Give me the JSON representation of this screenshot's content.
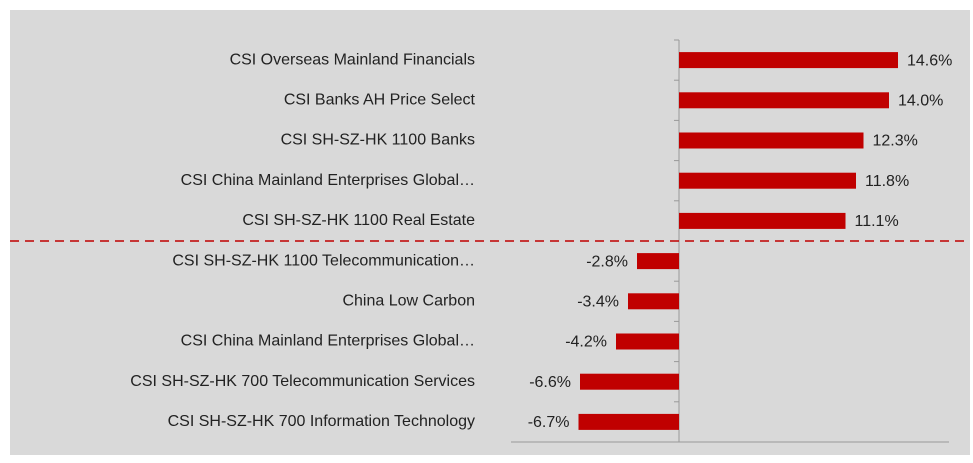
{
  "chart_data": {
    "type": "barh",
    "categories": [
      "CSI Overseas Mainland Financials",
      "CSI Banks AH Price Select",
      "CSI SH-SZ-HK 1100 Banks",
      "CSI China Mainland Enterprises Global…",
      "CSI SH-SZ-HK 1100 Real Estate",
      "CSI SH-SZ-HK 1100 Telecommunication…",
      "China Low Carbon",
      "CSI China Mainland Enterprises Global…",
      "CSI SH-SZ-HK 700 Telecommunication Services",
      "CSI SH-SZ-HK 700 Information Technology"
    ],
    "values": [
      14.6,
      14.0,
      12.3,
      11.8,
      11.1,
      -2.8,
      -3.4,
      -4.2,
      -6.6,
      -6.7
    ],
    "value_labels": [
      "14.6%",
      "14.0%",
      "12.3%",
      "11.8%",
      "11.1%",
      "-2.8%",
      "-3.4%",
      "-4.2%",
      "-6.6%",
      "-6.7%"
    ],
    "color": "#c00000",
    "xlim": [
      -11.2,
      18
    ]
  }
}
